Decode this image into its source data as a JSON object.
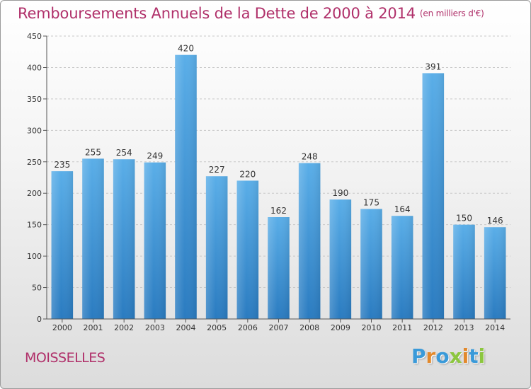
{
  "chart_data": {
    "type": "bar",
    "title": "Remboursements Annuels de la Dette de 2000 à 2014",
    "unit_label": "(en milliers d'€)",
    "categories": [
      "2000",
      "2001",
      "2002",
      "2003",
      "2004",
      "2005",
      "2006",
      "2007",
      "2008",
      "2009",
      "2010",
      "2011",
      "2012",
      "2013",
      "2014"
    ],
    "values": [
      235,
      255,
      254,
      249,
      420,
      227,
      220,
      162,
      248,
      190,
      175,
      164,
      391,
      150,
      146
    ],
    "ylim": [
      0,
      450
    ],
    "yticks": [
      0,
      50,
      100,
      150,
      200,
      250,
      300,
      350,
      400,
      450
    ],
    "xlabel": "",
    "ylabel": "",
    "grid": true,
    "bar_color_top": "#5aaee8",
    "bar_color_bottom": "#2a7bc0"
  },
  "footer": {
    "city": "MOISSELLES",
    "logo_letters": [
      {
        "ch": "P",
        "color": "#3a9ad9"
      },
      {
        "ch": "r",
        "color": "#e2892c"
      },
      {
        "ch": "o",
        "color": "#3a9ad9"
      },
      {
        "ch": "x",
        "color": "#8cc63f"
      },
      {
        "ch": "i",
        "color": "#e2892c"
      },
      {
        "ch": "t",
        "color": "#3a9ad9"
      },
      {
        "ch": "i",
        "color": "#8cc63f"
      }
    ]
  }
}
